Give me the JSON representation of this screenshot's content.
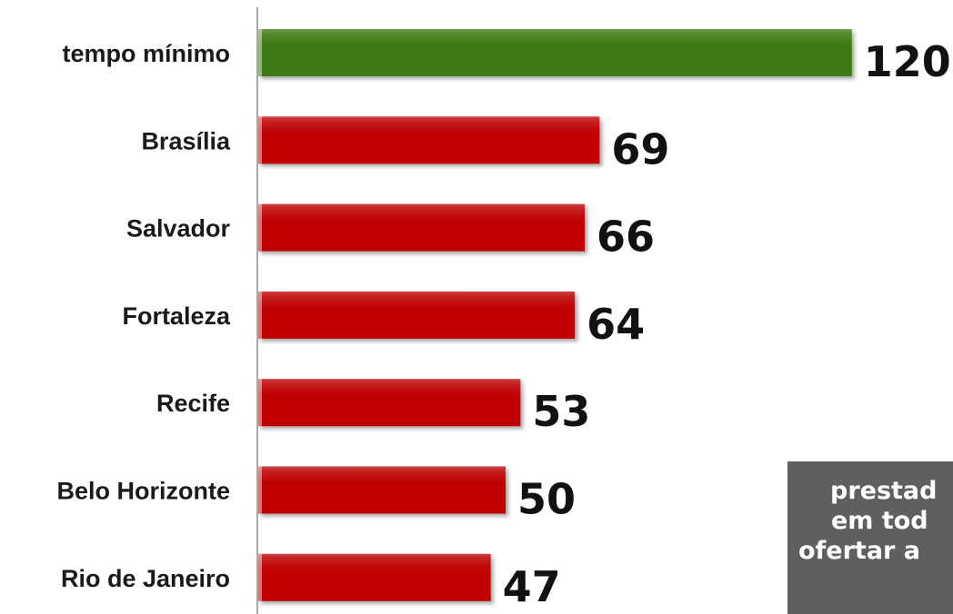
{
  "chart_data": {
    "type": "bar",
    "orientation": "horizontal",
    "categories": [
      "tempo mínimo",
      "Brasília",
      "Salvador",
      "Fortaleza",
      "Recife",
      "Belo Horizonte",
      "Rio de Janeiro"
    ],
    "values": [
      120,
      69,
      66,
      64,
      53,
      50,
      47
    ],
    "value_labels": [
      "120",
      "69",
      "66",
      "64",
      "53",
      "50",
      "47"
    ],
    "colors": [
      "#3d7a12",
      "#c00000",
      "#c00000",
      "#c00000",
      "#c00000",
      "#c00000",
      "#c00000"
    ],
    "xlim": [
      0,
      130
    ],
    "grid": false,
    "legend": "none"
  },
  "note_box": {
    "lines": [
      "prestad",
      "em tod",
      "ofertar a"
    ],
    "background": "#5f5f5f"
  }
}
